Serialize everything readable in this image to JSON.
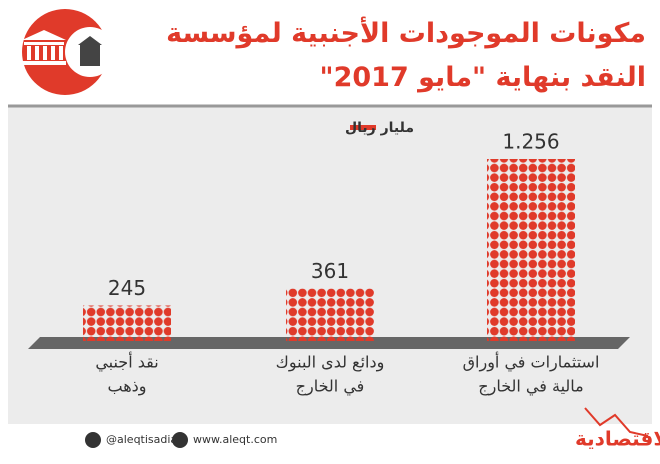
{
  "title": "مكونات الموجودات الأجنبية لمؤسسة النقد بنهاية \"مايو 2017\"",
  "chart_data": {
    "type": "bar",
    "unit": "مليار ريال",
    "categories": [
      [
        "استثمارات في أوراق",
        "مالية في الخارج"
      ],
      [
        "ودائع لدى البنوك",
        "في الخارج"
      ],
      [
        "نقد أجنبي",
        "وذهب"
      ]
    ],
    "values": [
      1256,
      361,
      245
    ],
    "value_labels": [
      "1.256",
      "361",
      "245"
    ],
    "color": "#e03a2a"
  },
  "footer": {
    "twitter": "@aleqtisadiah",
    "website": "www.aleqt.com",
    "logo": "الاقتصادية"
  }
}
